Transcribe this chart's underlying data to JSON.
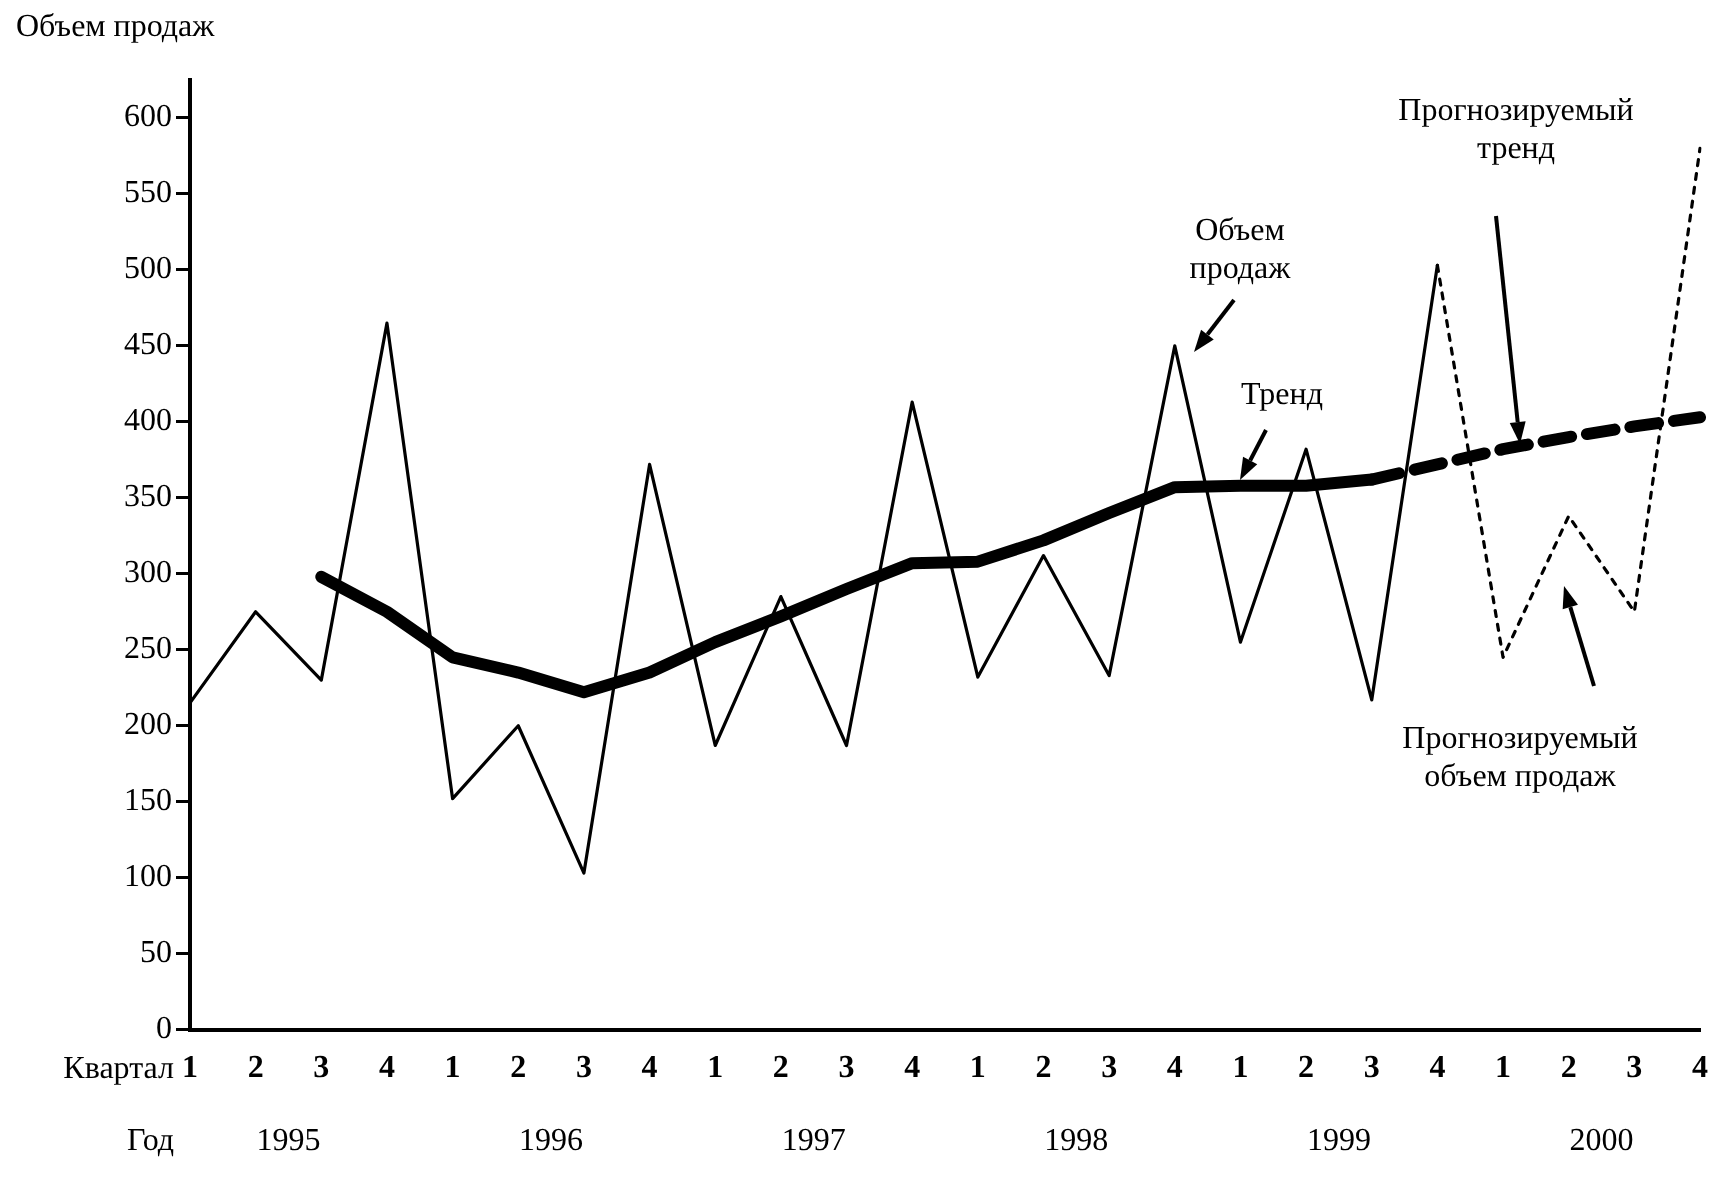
{
  "chart_data": {
    "type": "line",
    "ylabel": "Объем продаж",
    "xlabel": "Квартал",
    "categories": [
      "1",
      "2",
      "3",
      "4",
      "1",
      "2",
      "3",
      "4",
      "1",
      "2",
      "3",
      "4",
      "1",
      "2",
      "3",
      "4",
      "1",
      "2",
      "3",
      "4",
      "1",
      "2",
      "3",
      "4"
    ],
    "series": [
      {
        "color": "#000000",
        "line_style": "solid",
        "values": [
          215,
          275,
          230,
          465,
          152,
          200,
          103,
          372,
          187,
          285,
          187,
          413,
          232,
          312,
          233,
          450,
          255,
          382,
          217,
          503,
          null,
          null,
          null,
          null
        ]
      },
      {
        "color": "#000000",
        "line_style": "solid",
        "values": [
          null,
          null,
          298,
          275,
          245,
          235,
          222,
          235,
          255,
          272,
          290,
          307,
          308,
          322,
          340,
          357,
          358,
          358,
          362,
          null,
          null,
          null,
          null,
          null
        ]
      },
      {
        "color": "#000000",
        "line_style": "dashed",
        "values": [
          null,
          null,
          null,
          null,
          null,
          null,
          null,
          null,
          null,
          null,
          null,
          null,
          null,
          null,
          null,
          null,
          null,
          null,
          362,
          372,
          382,
          390,
          397,
          403
        ]
      },
      {
        "color": "#000000",
        "line_style": "dotted",
        "values": [
          null,
          null,
          null,
          null,
          null,
          null,
          null,
          null,
          null,
          null,
          null,
          null,
          null,
          null,
          null,
          null,
          null,
          null,
          null,
          503,
          245,
          338,
          275,
          580
        ]
      }
    ],
    "ylim": [
      0,
      625
    ],
    "yticks": [
      0,
      50,
      100,
      150,
      200,
      250,
      300,
      350,
      400,
      450,
      500,
      550,
      600
    ],
    "grid": false,
    "legend": false,
    "marker": "none",
    "annotations": [
      "Год",
      "1995",
      "1996",
      "1997",
      "1998",
      "1999",
      "2000",
      "Объем продаж",
      "Тренд",
      "Прогнозируемый тренд",
      "Прогнозируемый объем продаж"
    ]
  }
}
